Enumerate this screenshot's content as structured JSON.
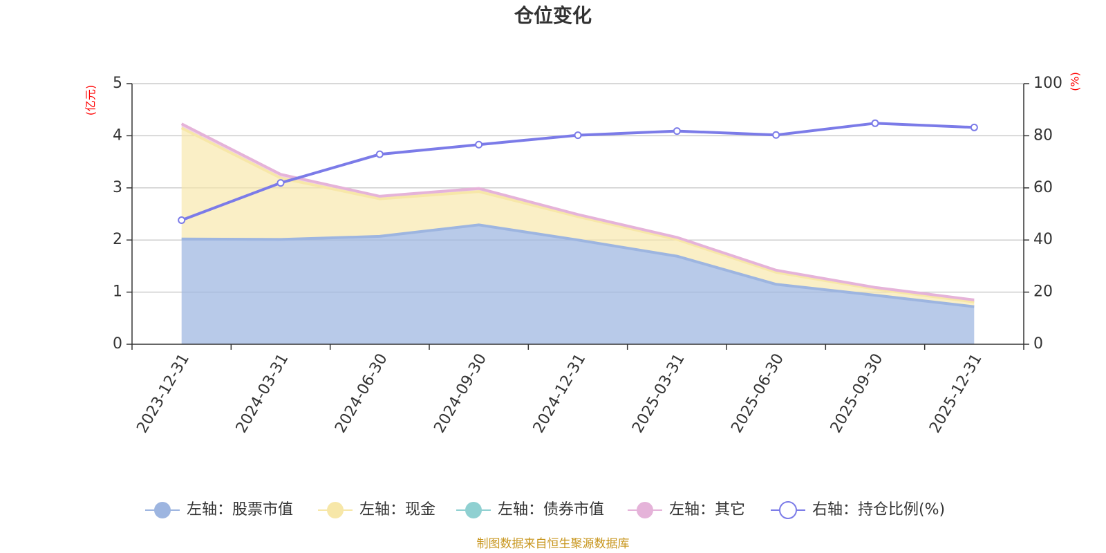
{
  "chart_data": {
    "type": "area",
    "title": "仓位变化",
    "x": [
      "2023-12-31",
      "2024-03-31",
      "2024-06-30",
      "2024-09-30",
      "2024-12-31",
      "2025-03-31",
      "2025-06-30",
      "2025-09-30",
      "2025-12-31"
    ],
    "left_axis": {
      "unit": "(亿元)",
      "min": 0,
      "max": 5,
      "ticks": [
        0,
        1,
        2,
        3,
        4,
        5
      ]
    },
    "right_axis": {
      "unit": "(%)",
      "min": 0,
      "max": 100,
      "ticks": [
        0,
        20,
        40,
        60,
        80,
        100
      ]
    },
    "grid": true,
    "stacked": true,
    "series": [
      {
        "name": "左轴：股票市值",
        "axis": "left",
        "color": "#9db5e0",
        "values": [
          2.02,
          2.01,
          2.07,
          2.29,
          2.0,
          1.69,
          1.15,
          0.94,
          0.72
        ]
      },
      {
        "name": "左轴：现金",
        "axis": "left",
        "color": "#f7e7a8",
        "values": [
          2.13,
          1.18,
          0.72,
          0.64,
          0.45,
          0.32,
          0.23,
          0.12,
          0.09
        ]
      },
      {
        "name": "左轴：债券市值",
        "axis": "left",
        "color": "#8fd0d1",
        "values": [
          0,
          0,
          0,
          0,
          0,
          0,
          0,
          0,
          0
        ]
      },
      {
        "name": "左轴：其它",
        "axis": "left",
        "color": "#e5b3d9",
        "values": [
          0.08,
          0.07,
          0.05,
          0.06,
          0.04,
          0.04,
          0.04,
          0.03,
          0.04
        ]
      },
      {
        "name": "右轴：持仓比例(%)",
        "axis": "right",
        "color": "#7b7be8",
        "values": [
          47.6,
          61.9,
          72.9,
          76.6,
          80.2,
          81.8,
          80.3,
          84.8,
          83.2
        ]
      }
    ],
    "legend_position": "bottom",
    "source": "制图数据来自恒生聚源数据库"
  }
}
